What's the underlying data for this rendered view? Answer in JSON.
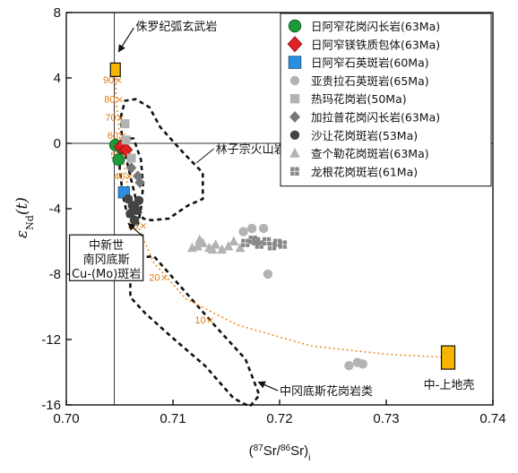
{
  "chart_data": {
    "type": "scatter",
    "xlabel": "(87Sr/86Sr)i",
    "ylabel": "εNd(t)",
    "xlim": [
      0.7,
      0.74
    ],
    "ylim": [
      -16,
      8
    ],
    "x_ticks": [
      "0.70",
      "0.71",
      "0.72",
      "0.73",
      "0.74"
    ],
    "y_ticks": [
      "8",
      "4",
      "0",
      "-4",
      "-8",
      "-12",
      "-16"
    ],
    "reference_lines": {
      "x": 0.7045,
      "y": 0
    },
    "series": [
      {
        "name": "日阿窄花岗闪长岩(63Ma)",
        "marker": "circle",
        "color": "#1a9a3a",
        "points": [
          [
            0.7046,
            -0.1
          ],
          [
            0.7049,
            -1.0
          ],
          [
            0.7052,
            -0.3
          ]
        ]
      },
      {
        "name": "日阿窄镁铁质包体(63Ma)",
        "marker": "diamond",
        "color": "#e02020",
        "points": [
          [
            0.7051,
            -0.2
          ],
          [
            0.7056,
            -0.4
          ]
        ]
      },
      {
        "name": "日阿窄石英斑岩(60Ma)",
        "marker": "square",
        "color": "#2a8fe0",
        "points": [
          [
            0.7054,
            -3.0
          ]
        ]
      },
      {
        "name": "亚贵拉石英斑岩(65Ma)",
        "marker": "circle",
        "color": "#b3b3b3",
        "points": [
          [
            0.7166,
            -5.4
          ],
          [
            0.7174,
            -5.2
          ],
          [
            0.7185,
            -5.2
          ],
          [
            0.7189,
            -8.0
          ],
          [
            0.7265,
            -13.6
          ],
          [
            0.7273,
            -13.4
          ],
          [
            0.7278,
            -13.5
          ]
        ]
      },
      {
        "name": "热玛花岗岩(50Ma)",
        "marker": "square",
        "color": "#b3b3b3",
        "points": [
          [
            0.7055,
            1.2
          ],
          [
            0.7056,
            0.2
          ],
          [
            0.7061,
            -0.9
          ]
        ]
      },
      {
        "name": "加拉普花岗闪长岩(63Ma)",
        "marker": "diamond",
        "color": "#777777",
        "points": [
          [
            0.7067,
            -2.0
          ],
          [
            0.7069,
            -2.4
          ],
          [
            0.7061,
            -1.5
          ]
        ]
      },
      {
        "name": "沙让花岗斑岩(53Ma)",
        "marker": "circle",
        "color": "#444444",
        "points": [
          [
            0.7058,
            -3.4
          ],
          [
            0.7062,
            -3.8
          ],
          [
            0.706,
            -4.3
          ],
          [
            0.7066,
            -4.1
          ],
          [
            0.7064,
            -4.7
          ],
          [
            0.7068,
            -3.5
          ]
        ]
      },
      {
        "name": "查个勒花岗斑岩(63Ma)",
        "marker": "triangle",
        "color": "#b3b3b3",
        "points": [
          [
            0.7118,
            -6.4
          ],
          [
            0.7123,
            -6.3
          ],
          [
            0.7128,
            -6.1
          ],
          [
            0.7134,
            -6.4
          ],
          [
            0.714,
            -6.2
          ],
          [
            0.7146,
            -6.5
          ],
          [
            0.7152,
            -6.3
          ],
          [
            0.7157,
            -6.0
          ],
          [
            0.7163,
            -6.4
          ],
          [
            0.7125,
            -5.9
          ],
          [
            0.7137,
            -6.5
          ]
        ]
      },
      {
        "name": "龙根花岗斑岩(61Ma)",
        "marker": "gridsquare",
        "color": "#888888",
        "points": [
          [
            0.7168,
            -6.1
          ],
          [
            0.7175,
            -5.9
          ],
          [
            0.7181,
            -6.2
          ],
          [
            0.7188,
            -6.0
          ],
          [
            0.7193,
            -6.3
          ],
          [
            0.7198,
            -6.1
          ],
          [
            0.7203,
            -6.2
          ],
          [
            0.7178,
            -6.0
          ]
        ]
      }
    ],
    "end_members": [
      {
        "label": "侏罗纪弧玄武岩",
        "x": 0.7046,
        "y": 4.5
      },
      {
        "label": "中-上地壳",
        "x": 0.7358,
        "y": -13.1
      }
    ],
    "mixing_curve": {
      "points": [
        [
          0.7046,
          4.5
        ],
        [
          0.7047,
          2.5
        ],
        [
          0.705,
          0.3
        ],
        [
          0.7058,
          -2.8
        ],
        [
          0.7068,
          -5.2
        ],
        [
          0.7082,
          -7.3
        ],
        [
          0.7112,
          -9.5
        ],
        [
          0.716,
          -11.1
        ],
        [
          0.723,
          -12.4
        ],
        [
          0.73,
          -12.9
        ],
        [
          0.7358,
          -13.1
        ]
      ],
      "labels": [
        "90",
        "80",
        "70",
        "60",
        "50",
        "40",
        "30",
        "20",
        "10"
      ],
      "label_positions": [
        [
          0.7049,
          3.9
        ],
        [
          0.705,
          2.7
        ],
        [
          0.7051,
          1.6
        ],
        [
          0.7053,
          0.5
        ],
        [
          0.7056,
          -0.7
        ],
        [
          0.7059,
          -2.0
        ],
        [
          0.7072,
          -5.0
        ],
        [
          0.7092,
          -8.2
        ],
        [
          0.7135,
          -10.8
        ]
      ]
    },
    "fields": [
      {
        "label": "林子宗火山岩",
        "outline": [
          [
            0.7051,
            1.6
          ],
          [
            0.7055,
            2.6
          ],
          [
            0.7065,
            2.7
          ],
          [
            0.7078,
            2.2
          ],
          [
            0.7088,
            1.0
          ],
          [
            0.711,
            -0.6
          ],
          [
            0.7128,
            -1.8
          ],
          [
            0.7128,
            -3.4
          ],
          [
            0.7114,
            -3.8
          ],
          [
            0.7096,
            -4.6
          ],
          [
            0.708,
            -4.7
          ],
          [
            0.7072,
            -4.6
          ],
          [
            0.7066,
            -3.6
          ],
          [
            0.706,
            -2.0
          ],
          [
            0.7055,
            -0.6
          ],
          [
            0.7052,
            0.5
          ]
        ]
      },
      {
        "label": "中新世南冈底斯Cu-(Mo)斑岩",
        "outline": [
          [
            0.7052,
            0.3
          ],
          [
            0.7063,
            0.3
          ],
          [
            0.707,
            -1.0
          ],
          [
            0.7072,
            -2.6
          ],
          [
            0.707,
            -4.0
          ],
          [
            0.7067,
            -5.0
          ],
          [
            0.7058,
            -4.6
          ],
          [
            0.7053,
            -3.2
          ],
          [
            0.705,
            -1.5
          ]
        ]
      },
      {
        "label": "中冈底斯花岗岩类",
        "outline": [
          [
            0.706,
            -8.4
          ],
          [
            0.7068,
            -7.0
          ],
          [
            0.7082,
            -6.9
          ],
          [
            0.7105,
            -8.6
          ],
          [
            0.714,
            -11.2
          ],
          [
            0.7168,
            -13.2
          ],
          [
            0.7181,
            -15.4
          ],
          [
            0.7172,
            -16.1
          ],
          [
            0.7157,
            -15.6
          ],
          [
            0.713,
            -13.6
          ],
          [
            0.7098,
            -11.8
          ],
          [
            0.7074,
            -10.4
          ],
          [
            0.706,
            -9.4
          ]
        ]
      }
    ],
    "annotations": [
      {
        "text": "侏罗纪弧玄武岩",
        "x": 0.7065,
        "y": 6.9
      },
      {
        "text": "林子宗火山岩",
        "x": 0.714,
        "y": -0.6
      },
      {
        "text": "中新世",
        "x": 0.7023,
        "y": -6.3
      },
      {
        "text": "南冈底斯",
        "x": 0.7023,
        "y": -7.1
      },
      {
        "text": "Cu-(Mo)斑岩",
        "x": 0.7023,
        "y": -7.9
      },
      {
        "text": "中冈底斯花岗岩类",
        "x": 0.72,
        "y": -15.4
      },
      {
        "text": "中-上地壳",
        "x": 0.7335,
        "y": -15.0
      }
    ],
    "legend_position": "top-right"
  }
}
